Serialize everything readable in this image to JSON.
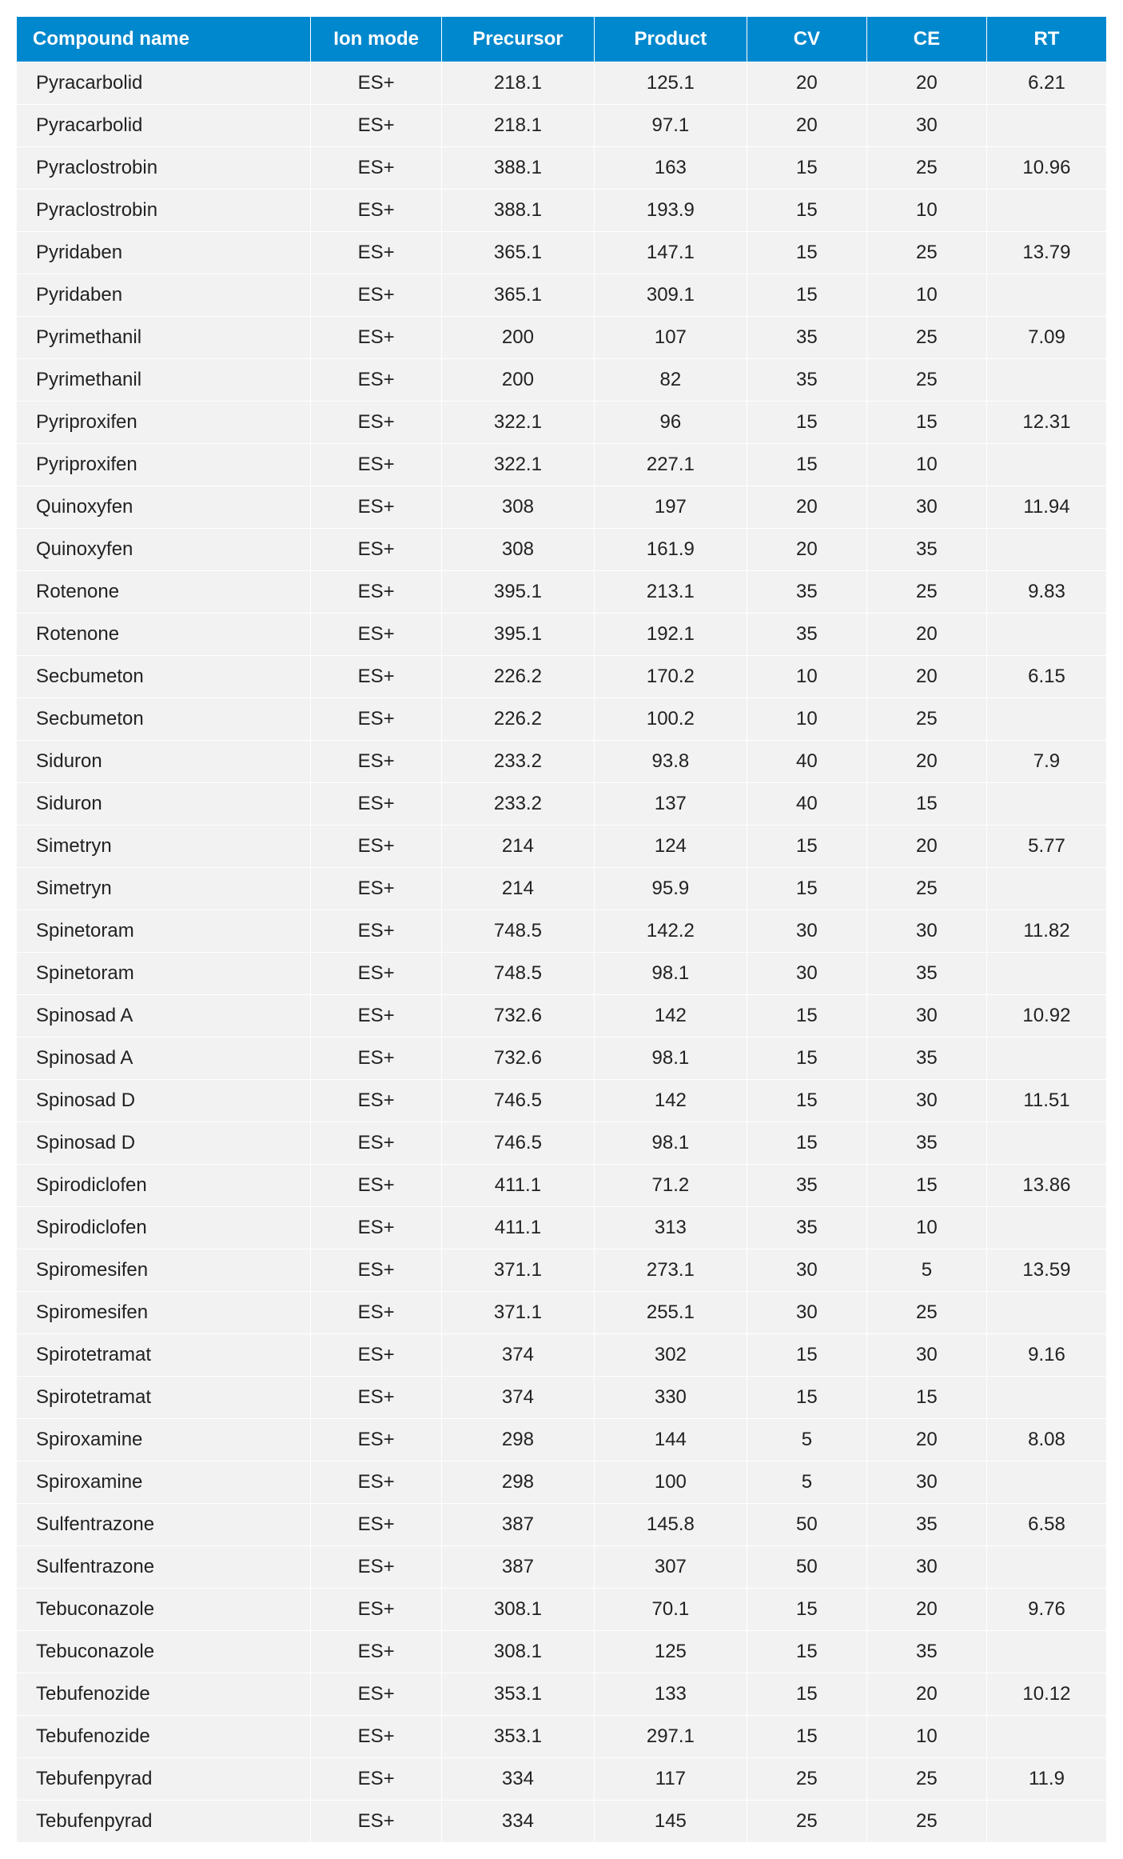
{
  "table": {
    "type": "table",
    "header_bg": "#0088ce",
    "header_fg": "#ffffff",
    "cell_bg": "#f2f2f2",
    "cell_fg": "#222222",
    "border_color": "#ffffff",
    "font_family": "Arial, Helvetica, sans-serif",
    "header_fontsize_pt": 18,
    "cell_fontsize_pt": 18,
    "column_widths_pct": [
      27,
      12,
      14,
      14,
      11,
      11,
      11
    ],
    "columns": [
      "Compound name",
      "Ion mode",
      "Precursor",
      "Product",
      "CV",
      "CE",
      "RT"
    ],
    "column_align": [
      "left",
      "center",
      "center",
      "center",
      "center",
      "center",
      "center"
    ],
    "rows": [
      [
        "Pyracarbolid",
        "ES+",
        "218.1",
        "125.1",
        "20",
        "20",
        "6.21"
      ],
      [
        "Pyracarbolid",
        "ES+",
        "218.1",
        "97.1",
        "20",
        "30",
        ""
      ],
      [
        "Pyraclostrobin",
        "ES+",
        "388.1",
        "163",
        "15",
        "25",
        "10.96"
      ],
      [
        "Pyraclostrobin",
        "ES+",
        "388.1",
        "193.9",
        "15",
        "10",
        ""
      ],
      [
        "Pyridaben",
        "ES+",
        "365.1",
        "147.1",
        "15",
        "25",
        "13.79"
      ],
      [
        "Pyridaben",
        "ES+",
        "365.1",
        "309.1",
        "15",
        "10",
        ""
      ],
      [
        "Pyrimethanil",
        "ES+",
        "200",
        "107",
        "35",
        "25",
        "7.09"
      ],
      [
        "Pyrimethanil",
        "ES+",
        "200",
        "82",
        "35",
        "25",
        ""
      ],
      [
        "Pyriproxifen",
        "ES+",
        "322.1",
        "96",
        "15",
        "15",
        "12.31"
      ],
      [
        "Pyriproxifen",
        "ES+",
        "322.1",
        "227.1",
        "15",
        "10",
        ""
      ],
      [
        "Quinoxyfen",
        "ES+",
        "308",
        "197",
        "20",
        "30",
        "11.94"
      ],
      [
        "Quinoxyfen",
        "ES+",
        "308",
        "161.9",
        "20",
        "35",
        ""
      ],
      [
        "Rotenone",
        "ES+",
        "395.1",
        "213.1",
        "35",
        "25",
        "9.83"
      ],
      [
        "Rotenone",
        "ES+",
        "395.1",
        "192.1",
        "35",
        "20",
        ""
      ],
      [
        "Secbumeton",
        "ES+",
        "226.2",
        "170.2",
        "10",
        "20",
        "6.15"
      ],
      [
        "Secbumeton",
        "ES+",
        "226.2",
        "100.2",
        "10",
        "25",
        ""
      ],
      [
        "Siduron",
        "ES+",
        "233.2",
        "93.8",
        "40",
        "20",
        "7.9"
      ],
      [
        "Siduron",
        "ES+",
        "233.2",
        "137",
        "40",
        "15",
        ""
      ],
      [
        "Simetryn",
        "ES+",
        "214",
        "124",
        "15",
        "20",
        "5.77"
      ],
      [
        "Simetryn",
        "ES+",
        "214",
        "95.9",
        "15",
        "25",
        ""
      ],
      [
        "Spinetoram",
        "ES+",
        "748.5",
        "142.2",
        "30",
        "30",
        "11.82"
      ],
      [
        "Spinetoram",
        "ES+",
        "748.5",
        "98.1",
        "30",
        "35",
        ""
      ],
      [
        "Spinosad A",
        "ES+",
        "732.6",
        "142",
        "15",
        "30",
        "10.92"
      ],
      [
        "Spinosad A",
        "ES+",
        "732.6",
        "98.1",
        "15",
        "35",
        ""
      ],
      [
        "Spinosad D",
        "ES+",
        "746.5",
        "142",
        "15",
        "30",
        "11.51"
      ],
      [
        "Spinosad D",
        "ES+",
        "746.5",
        "98.1",
        "15",
        "35",
        ""
      ],
      [
        "Spirodiclofen",
        "ES+",
        "411.1",
        "71.2",
        "35",
        "15",
        "13.86"
      ],
      [
        "Spirodiclofen",
        "ES+",
        "411.1",
        "313",
        "35",
        "10",
        ""
      ],
      [
        "Spiromesifen",
        "ES+",
        "371.1",
        "273.1",
        "30",
        "5",
        "13.59"
      ],
      [
        "Spiromesifen",
        "ES+",
        "371.1",
        "255.1",
        "30",
        "25",
        ""
      ],
      [
        "Spirotetramat",
        "ES+",
        "374",
        "302",
        "15",
        "30",
        "9.16"
      ],
      [
        "Spirotetramat",
        "ES+",
        "374",
        "330",
        "15",
        "15",
        ""
      ],
      [
        "Spiroxamine",
        "ES+",
        "298",
        "144",
        "5",
        "20",
        "8.08"
      ],
      [
        "Spiroxamine",
        "ES+",
        "298",
        "100",
        "5",
        "30",
        ""
      ],
      [
        "Sulfentrazone",
        "ES+",
        "387",
        "145.8",
        "50",
        "35",
        "6.58"
      ],
      [
        "Sulfentrazone",
        "ES+",
        "387",
        "307",
        "50",
        "30",
        ""
      ],
      [
        "Tebuconazole",
        "ES+",
        "308.1",
        "70.1",
        "15",
        "20",
        "9.76"
      ],
      [
        "Tebuconazole",
        "ES+",
        "308.1",
        "125",
        "15",
        "35",
        ""
      ],
      [
        "Tebufenozide",
        "ES+",
        "353.1",
        "133",
        "15",
        "20",
        "10.12"
      ],
      [
        "Tebufenozide",
        "ES+",
        "353.1",
        "297.1",
        "15",
        "10",
        ""
      ],
      [
        "Tebufenpyrad",
        "ES+",
        "334",
        "117",
        "25",
        "25",
        "11.9"
      ],
      [
        "Tebufenpyrad",
        "ES+",
        "334",
        "145",
        "25",
        "25",
        ""
      ]
    ]
  }
}
